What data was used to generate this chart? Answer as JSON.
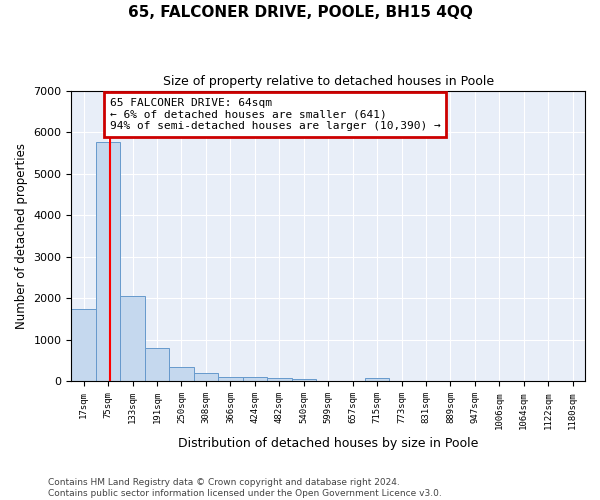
{
  "title": "65, FALCONER DRIVE, POOLE, BH15 4QQ",
  "subtitle": "Size of property relative to detached houses in Poole",
  "xlabel": "Distribution of detached houses by size in Poole",
  "ylabel": "Number of detached properties",
  "bin_labels": [
    "17sqm",
    "75sqm",
    "133sqm",
    "191sqm",
    "250sqm",
    "308sqm",
    "366sqm",
    "424sqm",
    "482sqm",
    "540sqm",
    "599sqm",
    "657sqm",
    "715sqm",
    "773sqm",
    "831sqm",
    "889sqm",
    "947sqm",
    "1006sqm",
    "1064sqm",
    "1122sqm",
    "1180sqm"
  ],
  "bar_heights": [
    1750,
    5750,
    2050,
    800,
    340,
    210,
    110,
    95,
    80,
    60,
    0,
    0,
    70,
    0,
    0,
    0,
    0,
    0,
    0,
    0,
    0
  ],
  "bar_color": "#c5d8ee",
  "bar_edge_color": "#6699cc",
  "background_color": "#e8eef8",
  "grid_color": "#ffffff",
  "ylim_max": 7000,
  "yticks": [
    0,
    1000,
    2000,
    3000,
    4000,
    5000,
    6000,
    7000
  ],
  "red_line_x": 1.08,
  "annotation_line1": "65 FALCONER DRIVE: 64sqm",
  "annotation_line2": "← 6% of detached houses are smaller (641)",
  "annotation_line3": "94% of semi-detached houses are larger (10,390) →",
  "annotation_box_facecolor": "#ffffff",
  "annotation_box_edgecolor": "#cc0000",
  "footer_line1": "Contains HM Land Registry data © Crown copyright and database right 2024.",
  "footer_line2": "Contains public sector information licensed under the Open Government Licence v3.0."
}
